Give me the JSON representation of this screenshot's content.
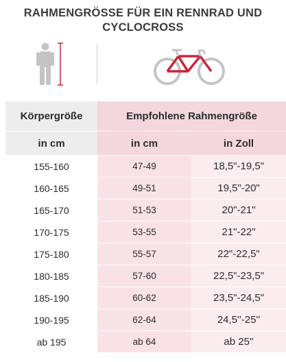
{
  "title": {
    "line1": "RAHMENGRÖSSE FÜR EIN RENNRAD UND",
    "line2": "CYCLOCROSS"
  },
  "icons": {
    "person": "person-height-icon",
    "bike": "road-bike-frame-icon",
    "accent_color": "#c8263a",
    "icon_color": "#c4c4c4"
  },
  "table": {
    "header_main": {
      "body_size": "Körpergröße",
      "recommended_frame": "Empfohlene Rahmengröße"
    },
    "header_units": {
      "body_cm": "in cm",
      "frame_cm": "in cm",
      "frame_inch": "in Zoll"
    },
    "rows": [
      {
        "height": "155-160",
        "frame_cm": "47-49",
        "frame_inch": "18,5\"-19,5\""
      },
      {
        "height": "160-165",
        "frame_cm": "49-51",
        "frame_inch": "19,5\"-20\""
      },
      {
        "height": "165-170",
        "frame_cm": "51-53",
        "frame_inch": "20\"-21\""
      },
      {
        "height": "170-175",
        "frame_cm": "53-55",
        "frame_inch": "21\"-22\""
      },
      {
        "height": "175-180",
        "frame_cm": "55-57",
        "frame_inch": "22\"-22,5\""
      },
      {
        "height": "180-185",
        "frame_cm": "57-60",
        "frame_inch": "22,5\"-23,5\""
      },
      {
        "height": "185-190",
        "frame_cm": "60-62",
        "frame_inch": "23,5\"-24,5\""
      },
      {
        "height": "190-195",
        "frame_cm": "62-64",
        "frame_inch": "24,5''-25''"
      },
      {
        "height": "ab 195",
        "frame_cm": "ab 64",
        "frame_inch": "ab 25''"
      }
    ]
  },
  "colors": {
    "header_gray": "#ededed",
    "header_pink": "#f3d7dc",
    "cell_pink": "#f9e2e6"
  }
}
